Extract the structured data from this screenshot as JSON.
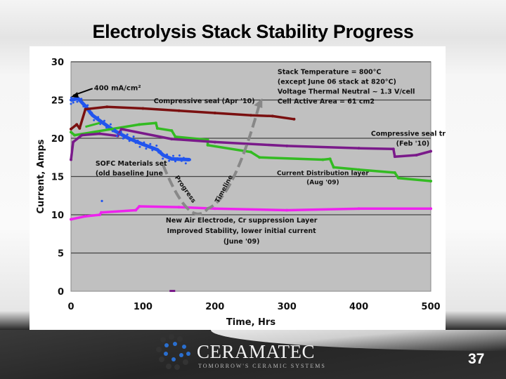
{
  "slide": {
    "title": "Electrolysis Stack Stability Progress",
    "page_number": "37"
  },
  "logo": {
    "name": "CERAMATEC",
    "tagline": "TOMORROW'S CERAMIC SYSTEMS"
  },
  "chart_data": {
    "type": "scatter",
    "xlabel": "Time, Hrs",
    "ylabel": "Current, Amps",
    "xlim": [
      0,
      500
    ],
    "ylim": [
      0,
      30
    ],
    "xticks": [
      "0",
      "100",
      "200",
      "300",
      "400",
      "500"
    ],
    "yticks": [
      "0",
      "5",
      "10",
      "15",
      "20",
      "25",
      "30"
    ],
    "grid": "horizontal",
    "plot_background": "#c0c0c0",
    "annotations": {
      "current_density": "400 mA/cm²",
      "conditions": [
        "Stack Temperature = 800°C",
        "(except June 06 stack at 820°C)",
        "Voltage Thermal Neutral ~ 1.3 V/cell",
        "Cell Active Area = 61 cm2"
      ],
      "sofc": [
        "SOFC Materials set",
        "(old baseline June"
      ],
      "apr10": "Compressive seal (Apr '10)",
      "feb10": [
        "Compressive seal trial",
        "(Feb '10)"
      ],
      "aug09": [
        "Current Distribution layer",
        "(Aug '09)"
      ],
      "jun09": [
        "New Air Electrode, Cr suppression Layer",
        "Improved Stability, lower initial current",
        "(June '09)"
      ],
      "progress_1": "Progress",
      "progress_2": "Timeline"
    },
    "series": [
      {
        "key": "sofc",
        "color": "#2255ee",
        "points": [
          [
            0,
            25
          ],
          [
            10,
            25.2
          ],
          [
            20,
            24.2
          ],
          [
            30,
            23
          ],
          [
            40,
            22.3
          ],
          [
            60,
            21
          ],
          [
            80,
            20
          ],
          [
            100,
            19.2
          ],
          [
            120,
            18.5
          ],
          [
            128,
            17.8
          ],
          [
            140,
            17.3
          ],
          [
            165,
            17.2
          ]
        ]
      },
      {
        "key": "apr10",
        "color": "#7a1010",
        "points": [
          [
            0,
            21.2
          ],
          [
            8,
            21.8
          ],
          [
            12,
            21.3
          ],
          [
            20,
            23.8
          ],
          [
            50,
            24.1
          ],
          [
            100,
            23.9
          ],
          [
            150,
            23.6
          ],
          [
            200,
            23.3
          ],
          [
            250,
            23
          ],
          [
            280,
            22.9
          ],
          [
            310,
            22.5
          ]
        ]
      },
      {
        "key": "aug09",
        "color": "#33bb22",
        "points": [
          [
            0,
            20.8
          ],
          [
            5,
            20.4
          ],
          [
            95,
            21.8
          ],
          [
            118,
            22
          ],
          [
            120,
            21.3
          ],
          [
            140,
            21
          ],
          [
            145,
            20.2
          ],
          [
            190,
            19.8
          ],
          [
            190,
            19.1
          ],
          [
            250,
            18.2
          ],
          [
            262,
            17.5
          ],
          [
            350,
            17.2
          ],
          [
            360,
            17.3
          ],
          [
            365,
            16.2
          ],
          [
            400,
            15.9
          ],
          [
            450,
            15.5
          ],
          [
            455,
            14.8
          ],
          [
            500,
            14.4
          ]
        ]
      },
      {
        "key": "feb10",
        "color": "#7a1a8a",
        "points": [
          [
            0,
            17.2
          ],
          [
            3,
            19.5
          ],
          [
            15,
            20.4
          ],
          [
            40,
            20.6
          ],
          [
            65,
            20.3
          ],
          [
            70,
            21.2
          ],
          [
            140,
            19.9
          ],
          [
            200,
            19.5
          ],
          [
            300,
            19
          ],
          [
            400,
            18.7
          ],
          [
            448,
            18.6
          ],
          [
            450,
            17.6
          ],
          [
            480,
            17.8
          ],
          [
            500,
            18.3
          ]
        ]
      },
      {
        "key": "jun09",
        "color": "#ee22ee",
        "points": [
          [
            0,
            9.4
          ],
          [
            20,
            9.8
          ],
          [
            40,
            10
          ],
          [
            42,
            10.3
          ],
          [
            90,
            10.6
          ],
          [
            95,
            11.1
          ],
          [
            150,
            11
          ],
          [
            200,
            10.8
          ],
          [
            300,
            10.6
          ],
          [
            400,
            10.8
          ],
          [
            500,
            10.8
          ]
        ]
      }
    ],
    "progress_arrow": {
      "color": "#888888",
      "points": [
        [
          128,
          16.5
        ],
        [
          160,
          12
        ],
        [
          190,
          10.8
        ],
        [
          220,
          12.5
        ],
        [
          245,
          19
        ],
        [
          262,
          24.5
        ]
      ]
    }
  }
}
